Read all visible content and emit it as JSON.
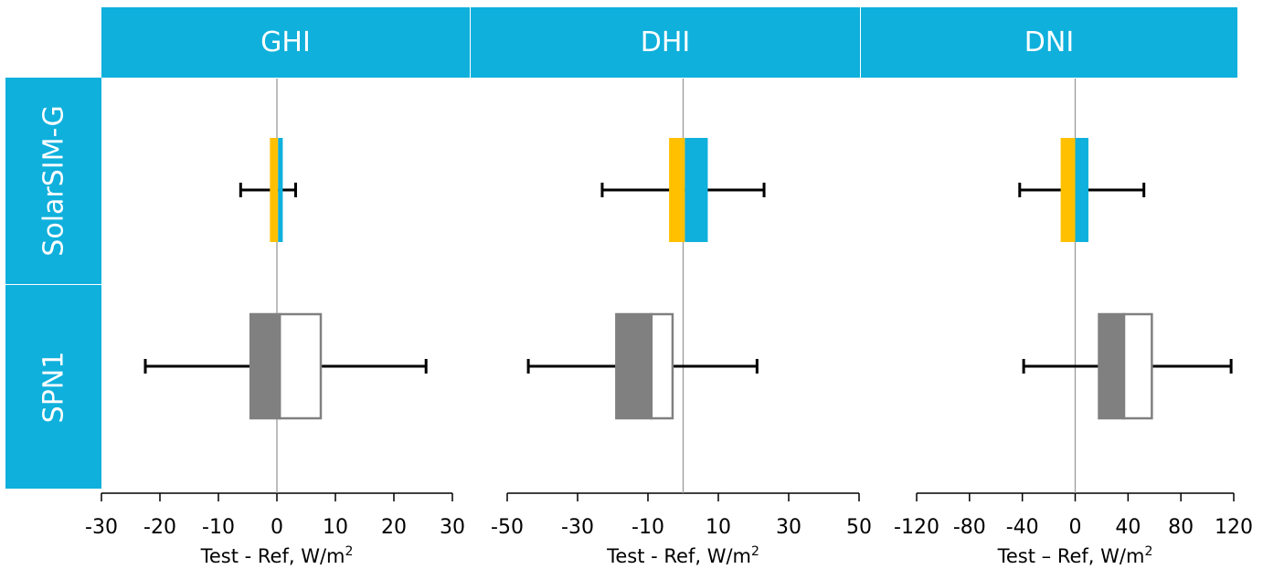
{
  "columns": [
    {
      "label": "GHI",
      "xlabel": "Test - Ref, W/m",
      "xlabel_sup": "2"
    },
    {
      "label": "DHI",
      "xlabel": "Test - Ref, W/m",
      "xlabel_sup": "2"
    },
    {
      "label": "DNI",
      "xlabel": "Test – Ref, W/m",
      "xlabel_sup": "2"
    }
  ],
  "rows": [
    {
      "label": "SolarSIM-G"
    },
    {
      "label": "SPN1"
    }
  ],
  "colors": {
    "header_bg": "#0fb0dc",
    "solarsim_lower": "#ffc000",
    "solarsim_upper": "#0fb0dc",
    "spn1_lower": "#808080",
    "spn1_upper": "#ffffff",
    "spn1_outline": "#808080",
    "whisker": "#000000",
    "zero_line": "#9a9a9a"
  },
  "chart_data": [
    {
      "type": "box",
      "title": "GHI",
      "xlabel": "Test - Ref, W/m²",
      "xlim": [
        -30,
        30
      ],
      "ticks": [
        -30,
        -20,
        -10,
        0,
        10,
        20,
        30
      ],
      "tick_labels": [
        "-30",
        "-20",
        "-10",
        "0",
        "10",
        "20",
        "30"
      ],
      "series": [
        {
          "name": "SolarSIM-G",
          "min": -6.2,
          "q1": -1.2,
          "median": 0.2,
          "q3": 1.0,
          "max": 3.2
        },
        {
          "name": "SPN1",
          "min": -22.5,
          "q1": -4.5,
          "median": 0.5,
          "q3": 7.5,
          "max": 25.5
        }
      ]
    },
    {
      "type": "box",
      "title": "DHI",
      "xlabel": "Test - Ref, W/m²",
      "xlim": [
        -50,
        50
      ],
      "ticks": [
        -50,
        -30,
        -10,
        10,
        30,
        50
      ],
      "tick_labels": [
        "-50",
        "-30",
        "-10",
        "10",
        "30",
        "50"
      ],
      "series": [
        {
          "name": "SolarSIM-G",
          "min": -23,
          "q1": -4,
          "median": 0.5,
          "q3": 7,
          "max": 23
        },
        {
          "name": "SPN1",
          "min": -44,
          "q1": -19,
          "median": -9,
          "q3": -3,
          "max": 21
        }
      ]
    },
    {
      "type": "box",
      "title": "DNI",
      "xlabel": "Test – Ref, W/m²",
      "xlim": [
        -120,
        120
      ],
      "ticks": [
        -120,
        -80,
        -40,
        0,
        40,
        80,
        120
      ],
      "tick_labels": [
        "-120",
        "-80",
        "-40",
        "0",
        "40",
        "80",
        "120"
      ],
      "series": [
        {
          "name": "SolarSIM-G",
          "min": -42,
          "q1": -11,
          "median": 0,
          "q3": 10,
          "max": 52
        },
        {
          "name": "SPN1",
          "min": -39,
          "q1": 18,
          "median": 37,
          "q3": 58,
          "max": 118
        }
      ]
    }
  ]
}
